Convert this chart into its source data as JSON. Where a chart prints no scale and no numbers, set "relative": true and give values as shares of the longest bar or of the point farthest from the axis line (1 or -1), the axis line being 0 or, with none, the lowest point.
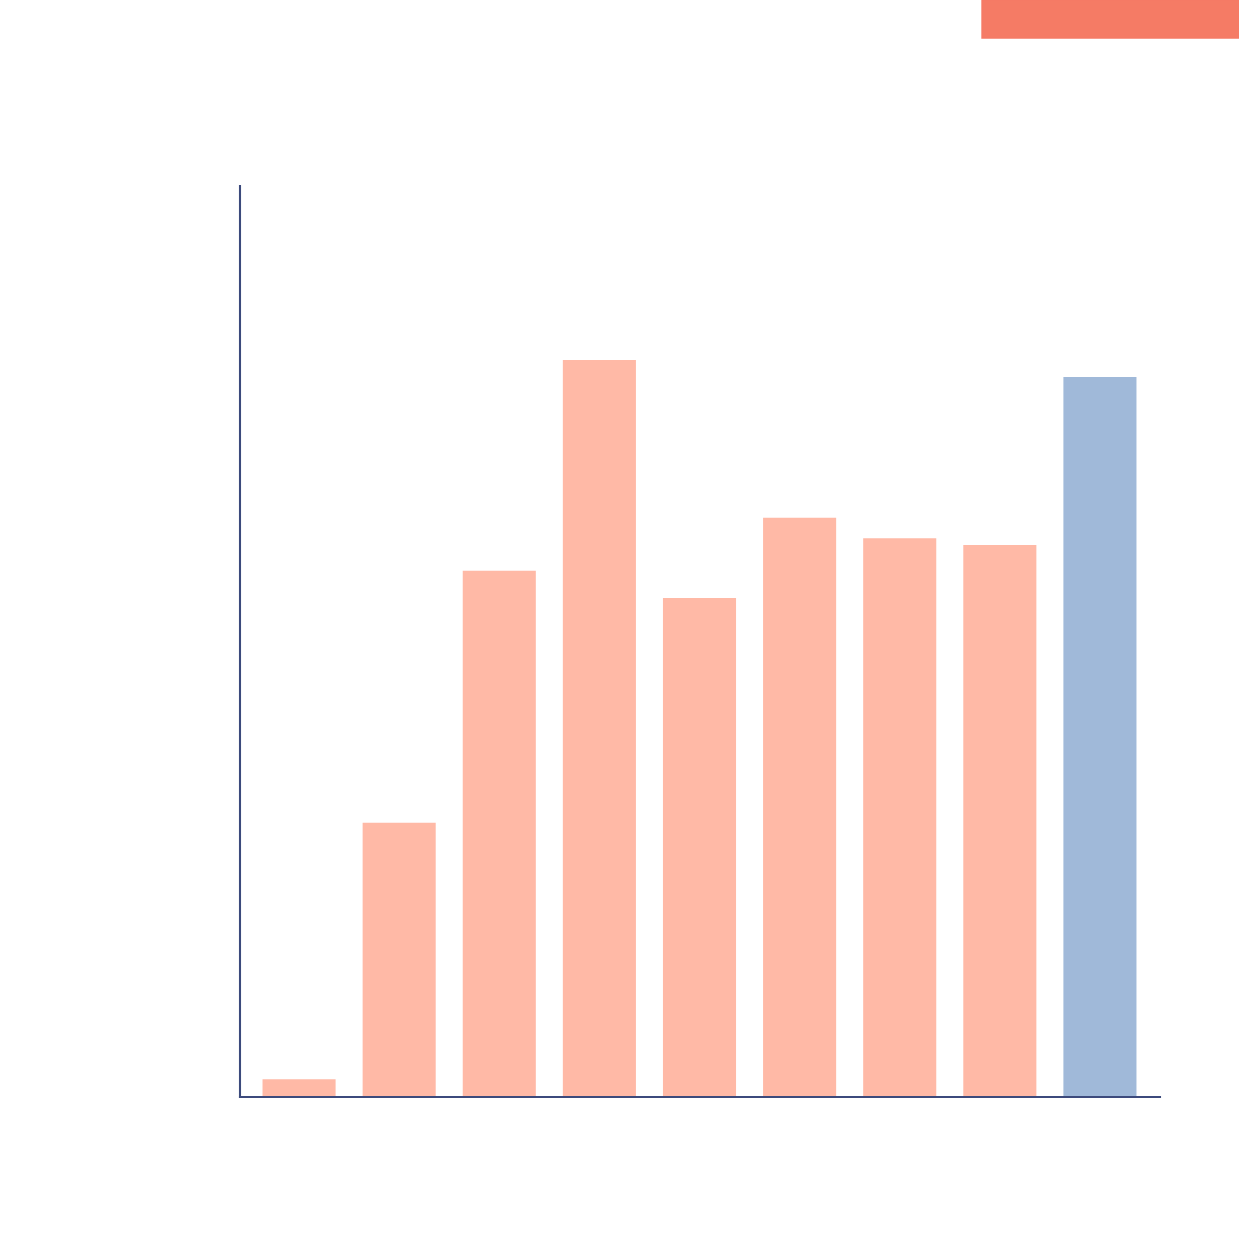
{
  "chart_data": {
    "type": "bar",
    "relative": true,
    "categories": [
      null,
      null,
      null,
      null,
      null,
      null,
      null,
      null,
      null
    ],
    "values": [
      0.024,
      0.372,
      0.714,
      1,
      0.677,
      0.786,
      0.758,
      0.749,
      0.977
    ],
    "colors": [
      "#ffb9a6",
      "#ffb9a6",
      "#ffb9a6",
      "#ffb9a6",
      "#ffb9a6",
      "#ffb9a6",
      "#ffb9a6",
      "#ffb9a6",
      "#a0b9d9"
    ],
    "grid": false,
    "legend": false
  }
}
